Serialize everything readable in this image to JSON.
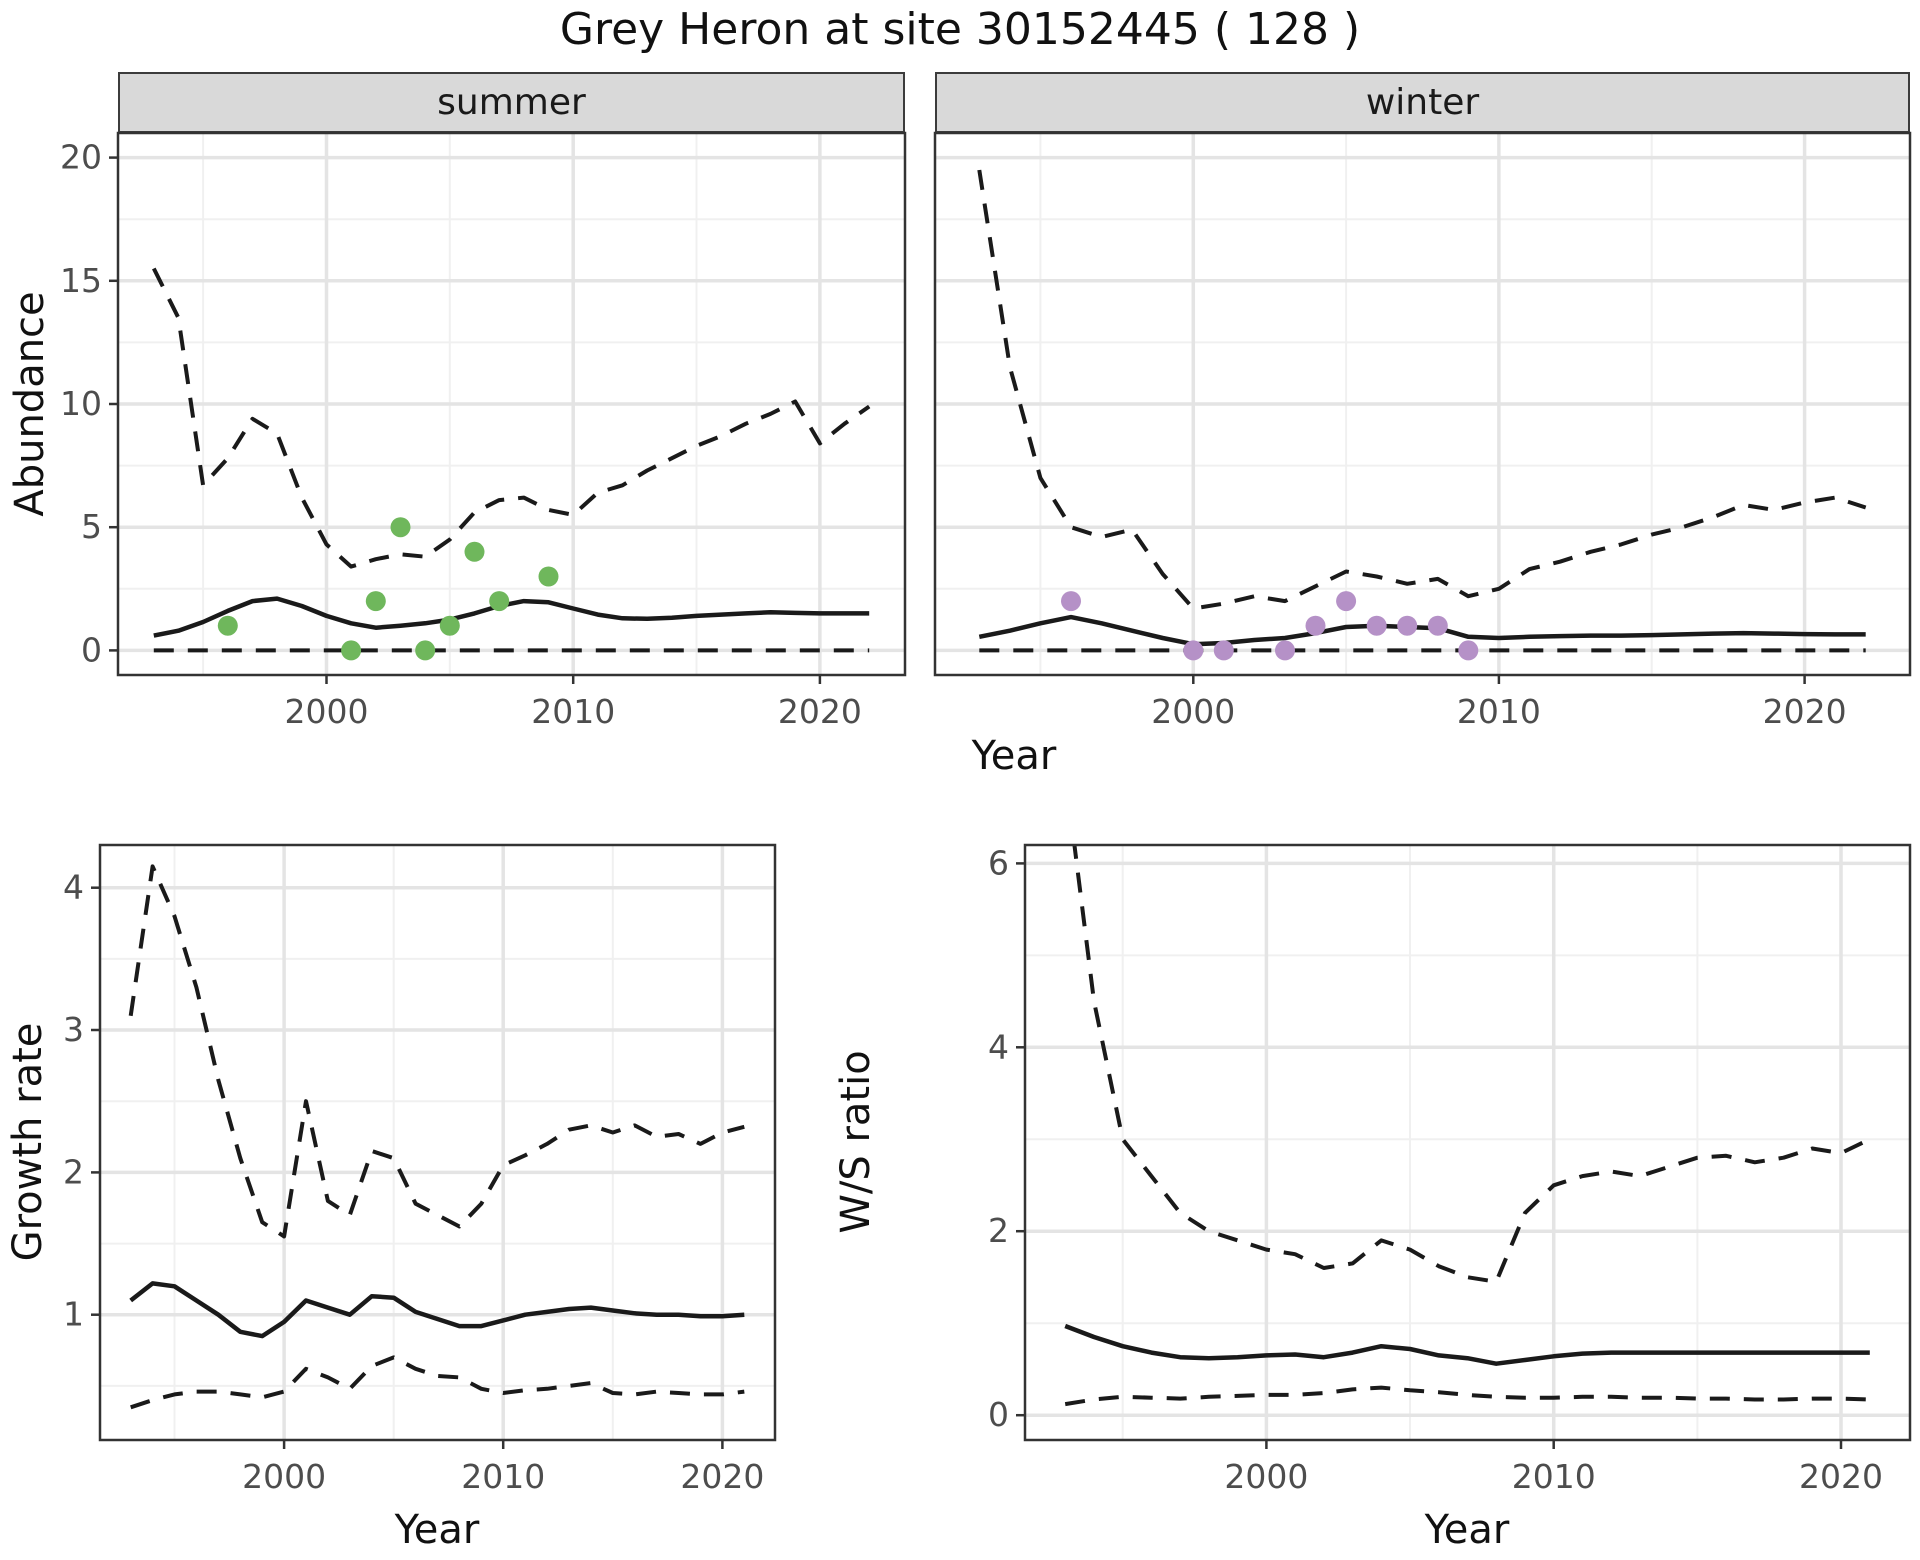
{
  "title": "Grey Heron at site 30152445 ( 128 )",
  "facets": {
    "summer": "summer",
    "winter": "winter"
  },
  "axis_titles": {
    "abundance": "Abundance",
    "year": "Year",
    "growth_rate": "Growth rate",
    "ws_ratio": "W/S ratio"
  },
  "colors": {
    "summer_point": "#6FB75C",
    "winter_point": "#B591C7",
    "line": "#1A1A1A",
    "grid_major": "#E4E4E4",
    "grid_minor": "#F0F0F0",
    "strip_bg": "#D9D9D9",
    "border": "#333333",
    "tick_label": "#4D4D4D"
  },
  "chart_data": [
    {
      "id": "abundance_summer",
      "type": "line",
      "facet": "summer",
      "xlabel": "Year",
      "ylabel": "Abundance",
      "legend": "none",
      "grid": "major+minor",
      "xlim": [
        1991.55,
        2023.45
      ],
      "ylim": [
        -1,
        21
      ],
      "xticks": [
        2000,
        2010,
        2020
      ],
      "xminor": [
        1995,
        2005,
        2015
      ],
      "yticks": [
        0,
        5,
        10,
        15,
        20
      ],
      "yminor": [
        2.5,
        7.5,
        12.5,
        17.5
      ],
      "x": [
        1993,
        1994,
        1995,
        1996,
        1997,
        1998,
        1999,
        2000,
        2001,
        2002,
        2003,
        2004,
        2005,
        2006,
        2007,
        2008,
        2009,
        2010,
        2011,
        2012,
        2013,
        2014,
        2015,
        2016,
        2017,
        2018,
        2019,
        2020,
        2021,
        2022
      ],
      "series": [
        {
          "name": "upper_95CI",
          "style": "dashed",
          "values": [
            15.5,
            13.5,
            6.7,
            7.8,
            9.4,
            8.8,
            6.2,
            4.3,
            3.4,
            3.7,
            3.9,
            3.8,
            4.5,
            5.6,
            6.1,
            6.2,
            5.7,
            5.5,
            6.4,
            6.7,
            7.3,
            7.8,
            8.3,
            8.7,
            9.2,
            9.6,
            10.1,
            8.4,
            9.2,
            9.9
          ]
        },
        {
          "name": "median",
          "style": "solid",
          "values": [
            0.6,
            0.8,
            1.15,
            1.6,
            2.0,
            2.1,
            1.8,
            1.4,
            1.1,
            0.92,
            1.0,
            1.1,
            1.25,
            1.5,
            1.8,
            2.0,
            1.95,
            1.7,
            1.45,
            1.3,
            1.28,
            1.32,
            1.4,
            1.45,
            1.5,
            1.55,
            1.52,
            1.5,
            1.5,
            1.5
          ]
        },
        {
          "name": "lower_95CI",
          "style": "dashed",
          "values": [
            0,
            0,
            0,
            0,
            0,
            0,
            0,
            0,
            0,
            0,
            0,
            0,
            0,
            0,
            0,
            0,
            0,
            0,
            0,
            0,
            0,
            0,
            0,
            0,
            0,
            0,
            0,
            0,
            0,
            0
          ]
        }
      ],
      "points": {
        "label": "observed_counts_summer",
        "color": "#6FB75C",
        "x": [
          1996,
          2001,
          2002,
          2003,
          2004,
          2005,
          2006,
          2007,
          2009
        ],
        "y": [
          1,
          0,
          2,
          5,
          0,
          1,
          4,
          2,
          3
        ]
      }
    },
    {
      "id": "abundance_winter",
      "type": "line",
      "facet": "winter",
      "xlabel": "Year",
      "ylabel": "Abundance",
      "legend": "none",
      "grid": "major+minor",
      "xlim": [
        1991.55,
        2023.45
      ],
      "ylim": [
        -1,
        21
      ],
      "xticks": [
        2000,
        2010,
        2020
      ],
      "xminor": [
        1995,
        2005,
        2015
      ],
      "yticks": [
        0,
        5,
        10,
        15,
        20
      ],
      "yminor": [
        2.5,
        7.5,
        12.5,
        17.5
      ],
      "x": [
        1993,
        1994,
        1995,
        1996,
        1997,
        1998,
        1999,
        2000,
        2001,
        2002,
        2003,
        2004,
        2005,
        2006,
        2007,
        2008,
        2009,
        2010,
        2011,
        2012,
        2013,
        2014,
        2015,
        2016,
        2017,
        2018,
        2019,
        2020,
        2021,
        2022
      ],
      "series": [
        {
          "name": "upper_95CI",
          "style": "dashed",
          "values": [
            19.5,
            11.5,
            7.0,
            5.0,
            4.6,
            4.9,
            3.1,
            1.7,
            1.9,
            2.2,
            2.0,
            2.6,
            3.2,
            3.0,
            2.7,
            2.9,
            2.2,
            2.5,
            3.3,
            3.6,
            4.0,
            4.3,
            4.7,
            5.0,
            5.4,
            5.9,
            5.7,
            6.0,
            6.2,
            5.8
          ]
        },
        {
          "name": "median",
          "style": "solid",
          "values": [
            0.55,
            0.8,
            1.1,
            1.35,
            1.1,
            0.8,
            0.5,
            0.25,
            0.3,
            0.42,
            0.5,
            0.7,
            0.95,
            1.0,
            0.95,
            0.9,
            0.55,
            0.5,
            0.55,
            0.58,
            0.6,
            0.6,
            0.62,
            0.65,
            0.68,
            0.7,
            0.68,
            0.66,
            0.65,
            0.65
          ]
        },
        {
          "name": "lower_95CI",
          "style": "dashed",
          "values": [
            0,
            0,
            0,
            0,
            0,
            0,
            0,
            0,
            0,
            0,
            0,
            0,
            0,
            0,
            0,
            0,
            0,
            0,
            0,
            0,
            0,
            0,
            0,
            0,
            0,
            0,
            0,
            0,
            0,
            0
          ]
        }
      ],
      "points": {
        "label": "observed_counts_winter",
        "color": "#B591C7",
        "x": [
          1996,
          2000,
          2001,
          2003,
          2004,
          2005,
          2006,
          2007,
          2008,
          2009
        ],
        "y": [
          2,
          0,
          0,
          0,
          1,
          2,
          1,
          1,
          1,
          0
        ]
      }
    },
    {
      "id": "growth_rate",
      "type": "line",
      "facet": "",
      "xlabel": "Year",
      "ylabel": "Growth rate",
      "legend": "none",
      "grid": "major+minor",
      "xlim": [
        1991.6,
        2022.4
      ],
      "ylim": [
        0.12,
        4.3
      ],
      "xticks": [
        2000,
        2010,
        2020
      ],
      "xminor": [
        1995,
        2005,
        2015
      ],
      "yticks": [
        1,
        2,
        3,
        4
      ],
      "yminor": [
        0.5,
        1.5,
        2.5,
        3.5
      ],
      "x": [
        1993,
        1994,
        1995,
        1996,
        1997,
        1998,
        1999,
        2000,
        2001,
        2002,
        2003,
        2004,
        2005,
        2006,
        2007,
        2008,
        2009,
        2010,
        2011,
        2012,
        2013,
        2014,
        2015,
        2016,
        2017,
        2018,
        2019,
        2020,
        2021
      ],
      "series": [
        {
          "name": "upper_95CI",
          "style": "dashed",
          "values": [
            3.1,
            4.15,
            3.8,
            3.3,
            2.65,
            2.1,
            1.65,
            1.55,
            2.5,
            1.8,
            1.7,
            2.15,
            2.1,
            1.78,
            1.7,
            1.62,
            1.78,
            2.05,
            2.12,
            2.2,
            2.3,
            2.33,
            2.28,
            2.33,
            2.25,
            2.27,
            2.2,
            2.28,
            2.32
          ]
        },
        {
          "name": "median",
          "style": "solid",
          "values": [
            1.1,
            1.22,
            1.2,
            1.1,
            1.0,
            0.88,
            0.85,
            0.95,
            1.1,
            1.05,
            1.0,
            1.13,
            1.12,
            1.02,
            0.97,
            0.92,
            0.92,
            0.96,
            1.0,
            1.02,
            1.04,
            1.05,
            1.03,
            1.01,
            1.0,
            1.0,
            0.99,
            0.99,
            1.0
          ]
        },
        {
          "name": "lower_95CI",
          "style": "dashed",
          "values": [
            0.35,
            0.4,
            0.44,
            0.46,
            0.46,
            0.44,
            0.42,
            0.46,
            0.62,
            0.56,
            0.48,
            0.64,
            0.7,
            0.62,
            0.57,
            0.56,
            0.48,
            0.45,
            0.47,
            0.48,
            0.5,
            0.52,
            0.45,
            0.44,
            0.46,
            0.45,
            0.44,
            0.44,
            0.46
          ]
        }
      ]
    },
    {
      "id": "ws_ratio",
      "type": "line",
      "facet": "",
      "xlabel": "Year",
      "ylabel": "W/S ratio",
      "legend": "none",
      "grid": "major+minor",
      "xlim": [
        1991.6,
        2022.4
      ],
      "ylim": [
        -0.27,
        6.2
      ],
      "xticks": [
        2000,
        2010,
        2020
      ],
      "xminor": [
        1995,
        2005,
        2015
      ],
      "yticks": [
        0,
        2,
        4,
        6
      ],
      "yminor": [
        1,
        3,
        5
      ],
      "x": [
        1993,
        1994,
        1995,
        1996,
        1997,
        1998,
        1999,
        2000,
        2001,
        2002,
        2003,
        2004,
        2005,
        2006,
        2007,
        2008,
        2009,
        2010,
        2011,
        2012,
        2013,
        2014,
        2015,
        2016,
        2017,
        2018,
        2019,
        2020,
        2021
      ],
      "series": [
        {
          "name": "upper_95CI",
          "style": "dashed",
          "values": [
            7.0,
            4.5,
            3.0,
            2.6,
            2.2,
            2.0,
            1.9,
            1.8,
            1.75,
            1.6,
            1.65,
            1.9,
            1.8,
            1.62,
            1.5,
            1.45,
            2.2,
            2.5,
            2.6,
            2.65,
            2.6,
            2.7,
            2.8,
            2.82,
            2.75,
            2.8,
            2.9,
            2.85,
            3.0
          ]
        },
        {
          "name": "median",
          "style": "solid",
          "values": [
            0.97,
            0.85,
            0.75,
            0.68,
            0.63,
            0.62,
            0.63,
            0.65,
            0.66,
            0.63,
            0.68,
            0.75,
            0.72,
            0.65,
            0.62,
            0.56,
            0.6,
            0.64,
            0.67,
            0.68,
            0.68,
            0.68,
            0.68,
            0.68,
            0.68,
            0.68,
            0.68,
            0.68,
            0.68
          ]
        },
        {
          "name": "lower_95CI",
          "style": "dashed",
          "values": [
            0.12,
            0.17,
            0.2,
            0.19,
            0.18,
            0.2,
            0.21,
            0.22,
            0.22,
            0.24,
            0.28,
            0.3,
            0.27,
            0.25,
            0.22,
            0.2,
            0.19,
            0.19,
            0.2,
            0.2,
            0.19,
            0.19,
            0.18,
            0.18,
            0.17,
            0.17,
            0.18,
            0.18,
            0.17
          ]
        }
      ]
    }
  ]
}
